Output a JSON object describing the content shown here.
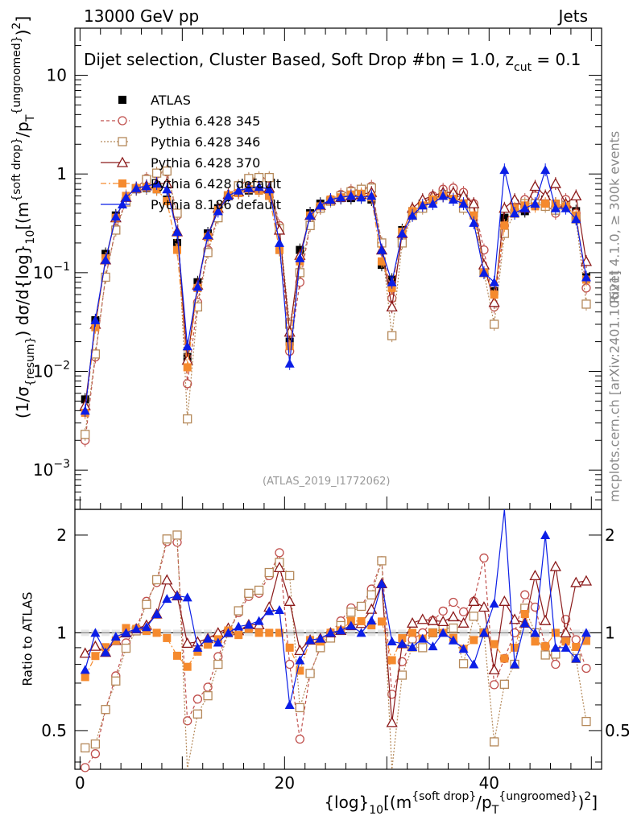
{
  "header": {
    "left": "13000 GeV pp",
    "right": "Jets"
  },
  "side_labels": {
    "rivet": "Rivet 4.1.0, ≥ 300k events",
    "mcplots": "mcplots.cern.ch [arXiv:2401.10621]"
  },
  "title": {
    "main": "Dijet selection, Cluster Based, Soft Drop #b",
    "beta": "η = 1.0, z",
    "beta_sub": "cut",
    "beta_tail": " = 0.1"
  },
  "watermark": "(ATLAS_2019_I1772062)",
  "y_axis_label": {
    "part1": "(1/σ",
    "part1_sub": "{resum}",
    "part2": ") dσ/d{log}",
    "part2_sub": "10",
    "part3": "[(m",
    "part3_sup": "{soft drop}",
    "part4": "/p",
    "part4_sub": "T",
    "part4_sup": "{ungroomed}",
    "part5": ")",
    "part5_sup": "2",
    "part6": "]"
  },
  "ratio_y_label": "Ratio to ATLAS",
  "x_axis_label": {
    "part1": "{log}",
    "part1_sub": "10",
    "part2": "[(m",
    "part2_sup": "{soft drop}",
    "part3": "/p",
    "part3_sub": "T",
    "part3_sup": "{ungroomed}",
    "part4": ")",
    "part4_sup": "2",
    "part5": "]"
  },
  "main_ticks": [
    {
      "label": "10",
      "exp": null,
      "value": 10
    },
    {
      "label": "1",
      "exp": null,
      "value": 1
    },
    {
      "label": "10",
      "exp": "−1",
      "value": 0.1
    },
    {
      "label": "10",
      "exp": "−2",
      "value": 0.01
    },
    {
      "label": "10",
      "exp": "−3",
      "value": 0.001
    }
  ],
  "ratio_ticks": [
    {
      "label": "2",
      "value": 2
    },
    {
      "label": "1",
      "value": 1
    },
    {
      "label": "0.5",
      "value": 0.5
    }
  ],
  "x_ticks": [
    {
      "label": "0",
      "value": 0
    },
    {
      "label": "20",
      "value": 20
    },
    {
      "label": "40",
      "value": 40
    }
  ],
  "chart_data": {
    "type": "scatter",
    "title": "Dijet selection, Cluster Based, Soft Drop #bη = 1.0, z_cut = 0.1",
    "xlabel": "{log}10[(m^{soft drop}/pT^{ungroomed})^2]",
    "ylabel": "(1/σ_{resum}) dσ/d{log}10[(m^{soft drop}/pT^{ungroomed})^2]",
    "ratio_ylabel": "Ratio to ATLAS",
    "xlim": [
      -0.5,
      51
    ],
    "ylim": [
      0.0004,
      30
    ],
    "ylog": true,
    "ratio_ylim": [
      0.38,
      2.4
    ],
    "ratio_ylog": true,
    "legend_position": "top-left",
    "x": [
      0.5,
      1.5,
      2.5,
      3.5,
      4.5,
      5.5,
      6.5,
      7.5,
      8.5,
      9.5,
      10.5,
      11.5,
      12.5,
      13.5,
      14.5,
      15.5,
      16.5,
      17.5,
      18.5,
      19.5,
      20.5,
      21.5,
      22.5,
      23.5,
      24.5,
      25.5,
      26.5,
      27.5,
      28.5,
      29.5,
      30.5,
      31.5,
      32.5,
      33.5,
      34.5,
      35.5,
      36.5,
      37.5,
      38.5,
      39.5,
      40.5,
      41.5,
      42.5,
      43.5,
      44.5,
      45.5,
      46.5,
      47.5,
      48.5,
      49.5
    ],
    "series": [
      {
        "name": "ATLAS",
        "color": "#000000",
        "marker": "square-filled",
        "values": [
          0.0052,
          0.033,
          0.155,
          0.38,
          0.58,
          0.7,
          0.72,
          0.7,
          0.55,
          0.2,
          0.014,
          0.08,
          0.25,
          0.45,
          0.6,
          0.65,
          0.68,
          0.68,
          0.6,
          0.17,
          0.02,
          0.17,
          0.4,
          0.5,
          0.55,
          0.57,
          0.57,
          0.58,
          0.55,
          0.12,
          0.085,
          0.27,
          0.42,
          0.5,
          0.55,
          0.6,
          0.58,
          0.56,
          0.4,
          0.1,
          0.065,
          0.36,
          0.5,
          0.42,
          0.5,
          0.55,
          0.5,
          0.5,
          0.42,
          0.09
        ]
      },
      {
        "name": "Pythia 6.428 345",
        "color": "#c0504d",
        "marker": "circle-open",
        "values": [
          0.002,
          0.014,
          0.09,
          0.28,
          0.54,
          0.72,
          0.9,
          1.0,
          1.05,
          0.38,
          0.0075,
          0.05,
          0.17,
          0.38,
          0.6,
          0.75,
          0.88,
          0.9,
          0.9,
          0.3,
          0.016,
          0.08,
          0.3,
          0.45,
          0.55,
          0.62,
          0.68,
          0.7,
          0.75,
          0.2,
          0.055,
          0.22,
          0.4,
          0.5,
          0.6,
          0.7,
          0.72,
          0.65,
          0.5,
          0.17,
          0.045,
          0.3,
          0.5,
          0.55,
          0.6,
          0.5,
          0.4,
          0.55,
          0.4,
          0.07
        ]
      },
      {
        "name": "Pythia 6.428 346",
        "color": "#b5895a",
        "marker": "square-open",
        "values": [
          0.0023,
          0.015,
          0.09,
          0.27,
          0.52,
          0.71,
          0.88,
          1.02,
          1.07,
          0.4,
          0.0033,
          0.045,
          0.16,
          0.36,
          0.6,
          0.76,
          0.9,
          0.92,
          0.92,
          0.28,
          0.03,
          0.1,
          0.3,
          0.45,
          0.53,
          0.6,
          0.66,
          0.7,
          0.72,
          0.2,
          0.023,
          0.2,
          0.38,
          0.45,
          0.55,
          0.62,
          0.6,
          0.45,
          0.45,
          0.1,
          0.03,
          0.25,
          0.4,
          0.5,
          0.5,
          0.47,
          0.43,
          0.48,
          0.35,
          0.048
        ]
      },
      {
        "name": "Pythia 6.428 370",
        "color": "#8b1a1a",
        "marker": "triangle-open",
        "values": [
          0.0045,
          0.03,
          0.135,
          0.36,
          0.58,
          0.72,
          0.76,
          0.8,
          0.8,
          0.26,
          0.013,
          0.075,
          0.24,
          0.45,
          0.62,
          0.66,
          0.72,
          0.72,
          0.72,
          0.27,
          0.025,
          0.15,
          0.38,
          0.48,
          0.55,
          0.58,
          0.6,
          0.62,
          0.65,
          0.17,
          0.045,
          0.25,
          0.45,
          0.55,
          0.6,
          0.65,
          0.65,
          0.6,
          0.5,
          0.12,
          0.05,
          0.45,
          0.55,
          0.45,
          0.75,
          0.6,
          0.8,
          0.5,
          0.6,
          0.13
        ]
      },
      {
        "name": "Pythia 6.428 default",
        "color": "#f58a2e",
        "marker": "square-filled",
        "values": [
          0.0038,
          0.028,
          0.14,
          0.36,
          0.6,
          0.72,
          0.73,
          0.7,
          0.53,
          0.17,
          0.011,
          0.07,
          0.23,
          0.43,
          0.61,
          0.64,
          0.7,
          0.68,
          0.6,
          0.17,
          0.018,
          0.13,
          0.38,
          0.47,
          0.55,
          0.58,
          0.62,
          0.63,
          0.58,
          0.13,
          0.07,
          0.26,
          0.42,
          0.48,
          0.55,
          0.6,
          0.56,
          0.5,
          0.38,
          0.1,
          0.06,
          0.3,
          0.45,
          0.48,
          0.47,
          0.5,
          0.5,
          0.47,
          0.38,
          0.085
        ]
      },
      {
        "name": "Pythia 8.186 default",
        "color": "#0b1ee6",
        "marker": "triangle-filled",
        "values": [
          0.004,
          0.033,
          0.135,
          0.37,
          0.58,
          0.72,
          0.75,
          0.8,
          0.7,
          0.26,
          0.018,
          0.072,
          0.24,
          0.42,
          0.6,
          0.68,
          0.72,
          0.74,
          0.7,
          0.2,
          0.012,
          0.14,
          0.38,
          0.48,
          0.55,
          0.58,
          0.6,
          0.58,
          0.6,
          0.17,
          0.08,
          0.25,
          0.38,
          0.48,
          0.5,
          0.6,
          0.55,
          0.5,
          0.32,
          0.1,
          0.08,
          1.1,
          0.4,
          0.45,
          0.5,
          1.1,
          0.45,
          0.45,
          0.35,
          0.09
        ]
      }
    ]
  }
}
